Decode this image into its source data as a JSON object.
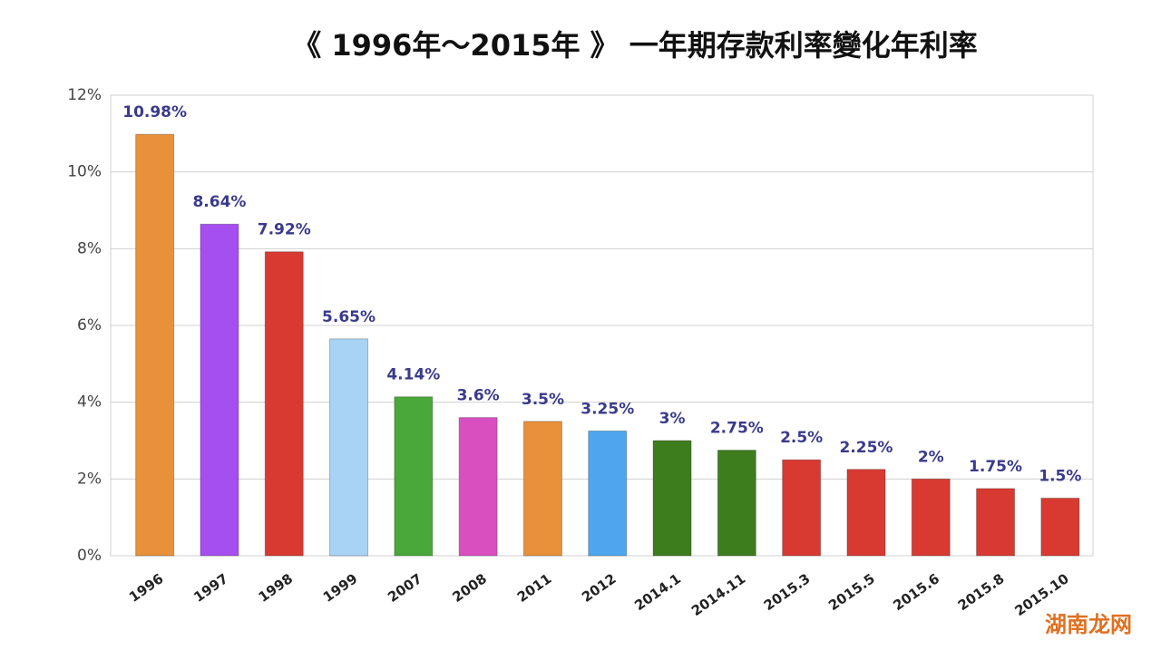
{
  "chart_data": {
    "type": "bar",
    "title": "《 1996年～2015年 》 一年期存款利率變化年利率",
    "categories": [
      "1996",
      "1997",
      "1998",
      "1999",
      "2007",
      "2008",
      "2011",
      "2012",
      "2014.1",
      "2014.11",
      "2015.3",
      "2015.5",
      "2015.6",
      "2015.8",
      "2015.10"
    ],
    "values": [
      10.98,
      8.64,
      7.92,
      5.65,
      4.14,
      3.6,
      3.5,
      3.25,
      3,
      2.75,
      2.5,
      2.25,
      2,
      1.75,
      1.5
    ],
    "value_labels": [
      "10.98%",
      "8.64%",
      "7.92%",
      "5.65%",
      "4.14%",
      "3.6%",
      "3.5%",
      "3.25%",
      "3%",
      "2.75%",
      "2.5%",
      "2.25%",
      "2%",
      "1.75%",
      "1.5%"
    ],
    "colors": [
      "#e8913a",
      "#a64ff0",
      "#d83a32",
      "#a9d3f5",
      "#4aa83a",
      "#d94fc0",
      "#e8913a",
      "#4ea6ee",
      "#3e7d1e",
      "#3e7d1e",
      "#d83a32",
      "#d83a32",
      "#d83a32",
      "#d83a32",
      "#d83a32"
    ],
    "ylim": [
      0,
      12
    ],
    "yticks": [
      {
        "value": 0,
        "label": "0%"
      },
      {
        "value": 2,
        "label": "2%"
      },
      {
        "value": 4,
        "label": "4%"
      },
      {
        "value": 6,
        "label": "6%"
      },
      {
        "value": 8,
        "label": "8%"
      },
      {
        "value": 10,
        "label": "10%"
      },
      {
        "value": 12,
        "label": "12%"
      }
    ],
    "grid": true,
    "watermark": "湖南龙网"
  }
}
